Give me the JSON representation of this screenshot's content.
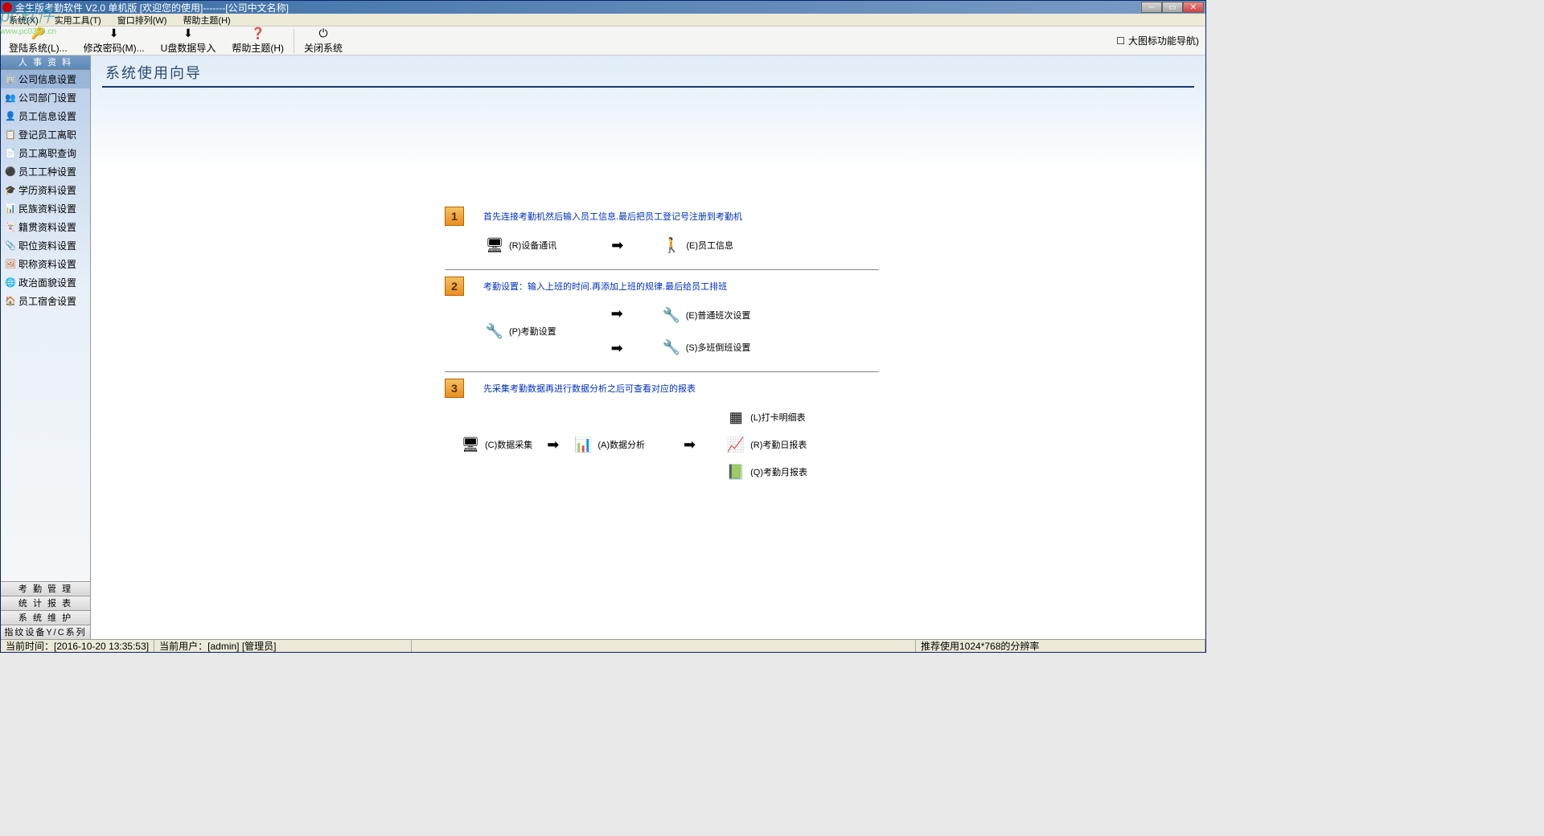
{
  "titlebar": {
    "text": "金生版考勤软件 V2.0  单机版 [欢迎您的使用]-------[公司中文名称]"
  },
  "watermark": {
    "main": "pc软件",
    "sub": "www.pc0359.cn"
  },
  "menubar": {
    "items": [
      "系统(X)",
      "实用工具(T)",
      "窗口排列(W)",
      "帮助主题(H)"
    ]
  },
  "toolbar": {
    "login": "登陆系统(L)...",
    "password": "修改密码(M)...",
    "import": "U盘数据导入",
    "help": "帮助主题(H)",
    "close": "关闭系统",
    "right": "大图标功能导航)"
  },
  "sidebar": {
    "header": "人 事 资 料",
    "items": [
      {
        "icon": "🏢",
        "label": "公司信息设置",
        "color": "#800"
      },
      {
        "icon": "👥",
        "label": "公司部门设置",
        "color": "#06c"
      },
      {
        "icon": "👤",
        "label": "员工信息设置",
        "color": "#000"
      },
      {
        "icon": "📋",
        "label": "登记员工离职",
        "color": "#c80"
      },
      {
        "icon": "📄",
        "label": "员工离职查询",
        "color": "#000"
      },
      {
        "icon": "⚫",
        "label": "员工工种设置",
        "color": "#000"
      },
      {
        "icon": "🎓",
        "label": "学历资料设置",
        "color": "#a00"
      },
      {
        "icon": "📊",
        "label": "民族资料设置",
        "color": "#060"
      },
      {
        "icon": "🃏",
        "label": "籍贯资料设置",
        "color": "#c06"
      },
      {
        "icon": "📎",
        "label": "职位资料设置",
        "color": "#06c"
      },
      {
        "icon": "🖼",
        "label": "职称资料设置",
        "color": "#c40"
      },
      {
        "icon": "🌐",
        "label": "政治面貌设置",
        "color": "#080"
      },
      {
        "icon": "🏠",
        "label": "员工宿舍设置",
        "color": "#048"
      }
    ],
    "footer": [
      "考 勤 管 理",
      "统 计 报 表",
      "系 统 维 护",
      "指纹设备Y/C系列"
    ]
  },
  "main": {
    "title": "系统使用向导",
    "steps": [
      {
        "num": "1",
        "desc": "首先连接考勤机然后输入员工信息.最后把员工登记号注册到考勤机",
        "items": [
          {
            "icon": "🖥🖥",
            "label": "(R)设备通讯"
          },
          {
            "arrow": true
          },
          {
            "icon": "👤",
            "label": "(E)员工信息"
          }
        ]
      },
      {
        "num": "2",
        "desc": "考勤设置：输入上班的时间.再添加上班的规律.最后给员工排班",
        "left": {
          "icon": "🔧",
          "label": "(P)考勤设置"
        },
        "right": [
          {
            "icon": "🔧",
            "label": "(E)普通班次设置"
          },
          {
            "icon": "🔧",
            "label": "(S)多班倒班设置"
          }
        ]
      },
      {
        "num": "3",
        "desc": "先采集考勤数据再进行数据分析之后可查看对应的报表",
        "items": [
          {
            "icon": "🖥🖥",
            "label": "(C)数据采集"
          },
          {
            "arrow": true
          },
          {
            "icon": "📊",
            "label": "(A)数据分析"
          },
          {
            "arrow": true
          }
        ],
        "right": [
          {
            "icon": "▦",
            "label": "(L)打卡明细表"
          },
          {
            "icon": "📈",
            "label": "(R)考勤日报表"
          },
          {
            "icon": "📗",
            "label": "(Q)考勤月报表"
          }
        ]
      }
    ]
  },
  "statusbar": {
    "time_label": "当前时间：",
    "time_value": "[2016-10-20 13:35:53]",
    "user_label": "当前用户：",
    "user_value": "[admin] [管理员]",
    "resolution": "推荐使用1024*768的分辨率"
  }
}
